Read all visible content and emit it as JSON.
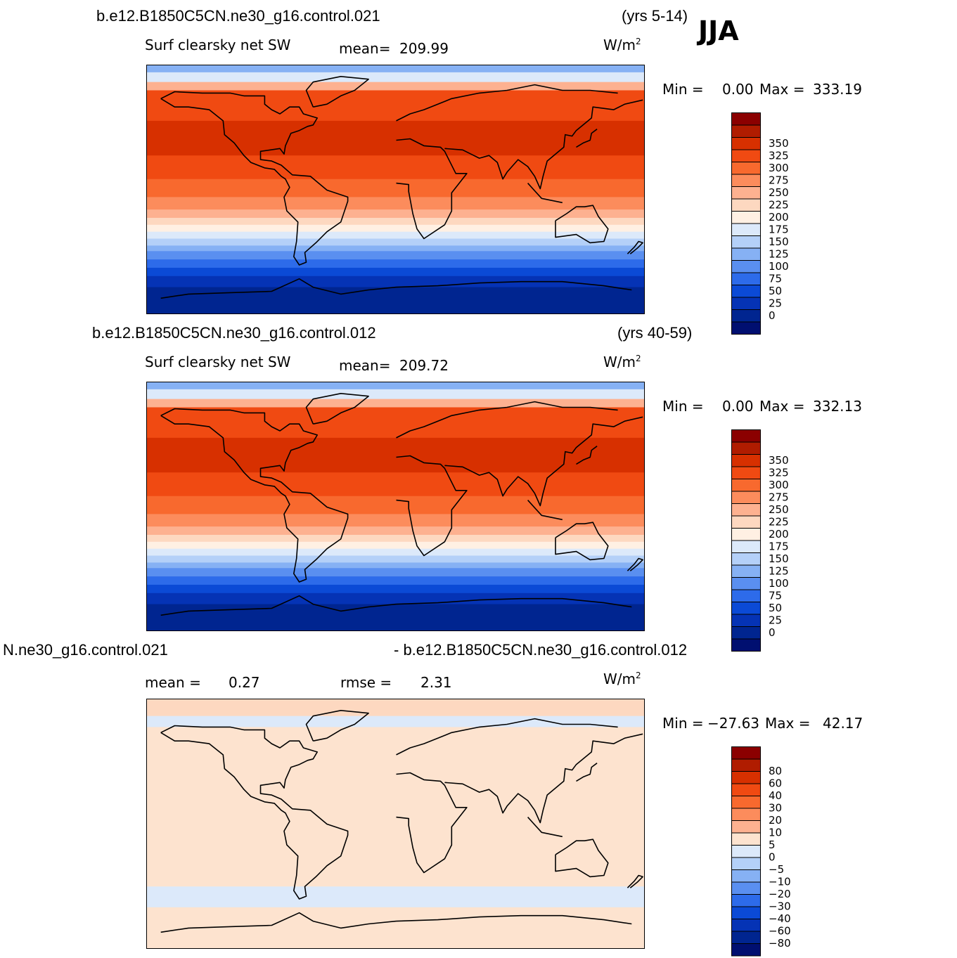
{
  "season": "JJA",
  "chart_data": [
    {
      "type": "heatmap",
      "title": "b.e12.B1850C5CN.ne30_g16.control.021",
      "years": "(yrs 5-14)",
      "variable": "Surf  clearsky  net  SW",
      "mean_label": "mean=",
      "mean": "209.99",
      "units": "W/m",
      "units_exp": "2",
      "min_label": "Min  =",
      "min": "0.00",
      "max_label": "Max  =",
      "max": "333.19",
      "levels": [
        "350",
        "325",
        "300",
        "275",
        "250",
        "225",
        "200",
        "175",
        "150",
        "125",
        "100",
        "75",
        "50",
        "25",
        "0"
      ],
      "colors": [
        "#8b0000",
        "#b01c00",
        "#d73000",
        "#f04a12",
        "#f8692e",
        "#fc8c5c",
        "#fdb190",
        "#fdd8c0",
        "#fff0e3",
        "#dce9fa",
        "#b4d0f8",
        "#86b1f4",
        "#5a8ff0",
        "#2d6bea",
        "#0b4ad6",
        "#0533b5",
        "#002590",
        "#000f70"
      ],
      "field": "sw_model_a"
    },
    {
      "type": "heatmap",
      "title": "b.e12.B1850C5CN.ne30_g16.control.012",
      "years": "(yrs 40-59)",
      "variable": "Surf  clearsky  net  SW",
      "mean_label": "mean=",
      "mean": "209.72",
      "units": "W/m",
      "units_exp": "2",
      "min_label": "Min  =",
      "min": "0.00",
      "max_label": "Max  =",
      "max": "332.13",
      "levels": [
        "350",
        "325",
        "300",
        "275",
        "250",
        "225",
        "200",
        "175",
        "150",
        "125",
        "100",
        "75",
        "50",
        "25",
        "0"
      ],
      "colors": [
        "#8b0000",
        "#b01c00",
        "#d73000",
        "#f04a12",
        "#f8692e",
        "#fc8c5c",
        "#fdb190",
        "#fdd8c0",
        "#fff0e3",
        "#dce9fa",
        "#b4d0f8",
        "#86b1f4",
        "#5a8ff0",
        "#2d6bea",
        "#0b4ad6",
        "#0533b5",
        "#002590",
        "#000f70"
      ],
      "field": "sw_model_b"
    },
    {
      "type": "heatmap",
      "title_left": "N.ne30_g16.control.021",
      "title_right": "- b.e12.B1850C5CN.ne30_g16.control.012",
      "mean_label": "mean  =",
      "mean": "0.27",
      "rmse_label": "rmse  =",
      "rmse": "2.31",
      "units": "W/m",
      "units_exp": "2",
      "min_label": "Min  =",
      "min": "−27.63",
      "max_label": "Max  =",
      "max": "42.17",
      "levels": [
        "80",
        "60",
        "40",
        "30",
        "20",
        "10",
        "5",
        "0",
        "−5",
        "−10",
        "−20",
        "−30",
        "−40",
        "−60",
        "−80"
      ],
      "colors": [
        "#8b0000",
        "#b01c00",
        "#d73000",
        "#f04a12",
        "#f8692e",
        "#fc8c5c",
        "#fdb190",
        "#fde3cf",
        "#dce9fa",
        "#b4d0f8",
        "#86b1f4",
        "#5a8ff0",
        "#2d6bea",
        "#0b4ad6",
        "#0533b5",
        "#002590",
        "#000f70"
      ],
      "field": "difference"
    }
  ]
}
